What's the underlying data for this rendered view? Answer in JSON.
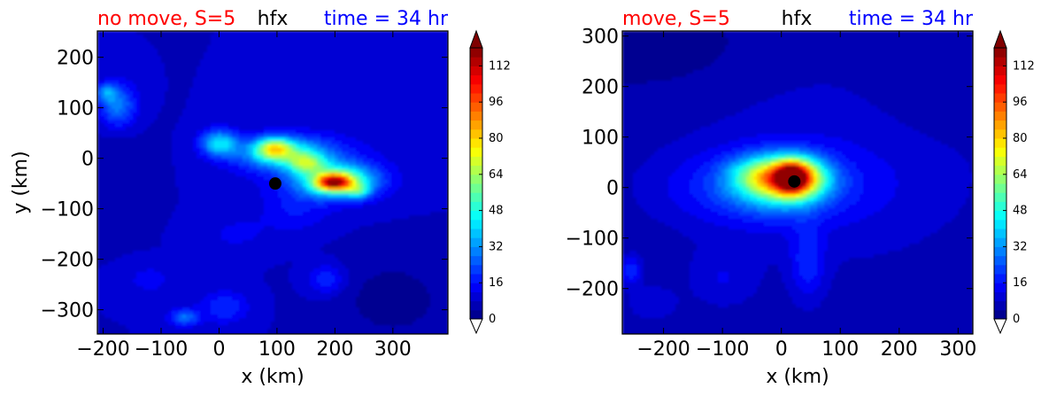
{
  "colorbar": {
    "ticks": [
      0,
      16,
      32,
      48,
      64,
      80,
      96,
      112
    ],
    "min": 0,
    "max": 120,
    "levels": 30,
    "colormap": "jet",
    "extend": "both"
  },
  "marker_color": "#000000",
  "chart_data": [
    {
      "type": "heatmap",
      "title_left": "no move, S=5",
      "title_center": "hfx",
      "title_right": "time = 34 hr",
      "title_left_color": "#ff0000",
      "title_right_color": "#0000ff",
      "xlabel": "x (km)",
      "ylabel": "y (km)",
      "xlim": [
        -210,
        395
      ],
      "ylim": [
        -348,
        252
      ],
      "xticks": [
        -200,
        -100,
        0,
        100,
        200,
        300
      ],
      "xtick_labels": [
        "−200",
        "−100",
        "0",
        "100",
        "200",
        "300"
      ],
      "yticks": [
        200,
        100,
        0,
        -100,
        -200,
        -300
      ],
      "ytick_labels": [
        "200",
        "100",
        "0",
        "−100",
        "−200",
        "−300"
      ],
      "background_value": 8,
      "marker": {
        "x": 97,
        "y": -50
      },
      "features": [
        {
          "x": 170,
          "y": -20,
          "sx": 80,
          "sy": 45,
          "value": 9
        },
        {
          "x": -175,
          "y": 105,
          "sx": 22,
          "sy": 30,
          "value": 22
        },
        {
          "x": -195,
          "y": 130,
          "sx": 12,
          "sy": 12,
          "value": 18
        },
        {
          "x": 0,
          "y": 30,
          "sx": 22,
          "sy": 18,
          "value": 32
        },
        {
          "x": 110,
          "y": 10,
          "sx": 55,
          "sy": 22,
          "value": 35
        },
        {
          "x": 95,
          "y": 20,
          "sx": 22,
          "sy": 14,
          "value": 40
        },
        {
          "x": 150,
          "y": -10,
          "sx": 22,
          "sy": 14,
          "value": 30
        },
        {
          "x": 205,
          "y": -45,
          "sx": 45,
          "sy": 22,
          "value": 52
        },
        {
          "x": 198,
          "y": -48,
          "sx": 20,
          "sy": 11,
          "value": 62
        },
        {
          "x": 240,
          "y": -65,
          "sx": 14,
          "sy": 10,
          "value": 22
        },
        {
          "x": -60,
          "y": -315,
          "sx": 18,
          "sy": 12,
          "value": 20
        },
        {
          "x": 10,
          "y": -295,
          "sx": 28,
          "sy": 22,
          "value": 12
        },
        {
          "x": 185,
          "y": -240,
          "sx": 22,
          "sy": 20,
          "value": 12
        },
        {
          "x": -120,
          "y": -240,
          "sx": 25,
          "sy": 18,
          "value": 7
        },
        {
          "x": 130,
          "y": -105,
          "sx": 40,
          "sy": 30,
          "value": 7
        },
        {
          "x": 30,
          "y": -150,
          "sx": 40,
          "sy": 25,
          "value": 5
        },
        {
          "x": 300,
          "y": -280,
          "sx": 70,
          "sy": 60,
          "value": -6
        },
        {
          "x": -180,
          "y": -20,
          "sx": 40,
          "sy": 60,
          "value": -3
        }
      ]
    },
    {
      "type": "heatmap",
      "title_left": "move, S=5",
      "title_center": "hfx",
      "title_right": "time = 34 hr",
      "title_left_color": "#ff0000",
      "title_right_color": "#0000ff",
      "xlabel": "x (km)",
      "ylabel": "",
      "xlim": [
        -270,
        325
      ],
      "ylim": [
        -290,
        310
      ],
      "xticks": [
        -200,
        -100,
        0,
        100,
        200,
        300
      ],
      "xtick_labels": [
        "−200",
        "−100",
        "0",
        "100",
        "200",
        "300"
      ],
      "yticks": [
        300,
        200,
        100,
        0,
        -100,
        -200
      ],
      "ytick_labels": [
        "300",
        "200",
        "100",
        "0",
        "−100",
        "−200"
      ],
      "background_value": 5,
      "marker": {
        "x": 22,
        "y": 12
      },
      "features": [
        {
          "x": 100,
          "y": 40,
          "sx": 190,
          "sy": 150,
          "value": 6
        },
        {
          "x": -30,
          "y": 0,
          "sx": 110,
          "sy": 50,
          "value": 16
        },
        {
          "x": -40,
          "y": 25,
          "sx": 35,
          "sy": 25,
          "value": 24
        },
        {
          "x": -5,
          "y": 10,
          "sx": 50,
          "sy": 35,
          "value": 30
        },
        {
          "x": 25,
          "y": 20,
          "sx": 35,
          "sy": 27,
          "value": 58
        },
        {
          "x": 18,
          "y": 20,
          "sx": 18,
          "sy": 20,
          "value": 52
        },
        {
          "x": 45,
          "y": -150,
          "sx": 20,
          "sy": 50,
          "value": 12
        },
        {
          "x": -255,
          "y": -165,
          "sx": 12,
          "sy": 20,
          "value": 14
        },
        {
          "x": -220,
          "y": -230,
          "sx": 30,
          "sy": 25,
          "value": 6
        },
        {
          "x": -100,
          "y": -180,
          "sx": 40,
          "sy": 40,
          "value": 6
        },
        {
          "x": -200,
          "y": 270,
          "sx": 120,
          "sy": 60,
          "value": -3
        },
        {
          "x": 260,
          "y": 200,
          "sx": 80,
          "sy": 70,
          "value": -3
        }
      ]
    }
  ]
}
